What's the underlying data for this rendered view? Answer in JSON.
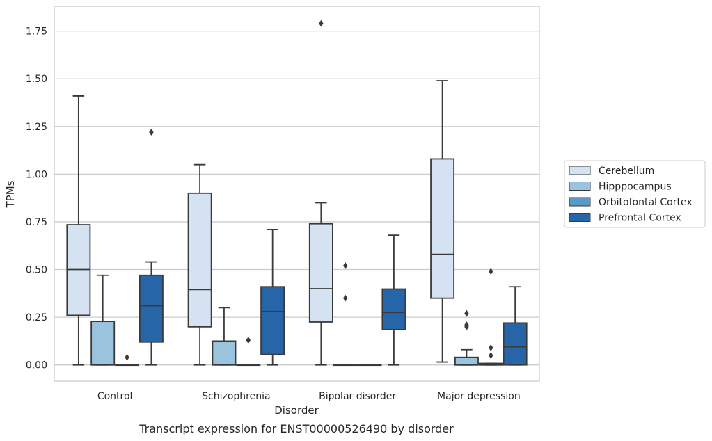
{
  "chart_data": {
    "type": "box",
    "caption": "Transcript expression for ENST00000526490 by disorder",
    "xlabel": "Disorder",
    "ylabel": "TPMs",
    "ylim": [
      -0.085,
      1.88
    ],
    "yticks": [
      0.0,
      0.25,
      0.5,
      0.75,
      1.0,
      1.25,
      1.5,
      1.75
    ],
    "ytick_labels": [
      "0.00",
      "0.25",
      "0.50",
      "0.75",
      "1.00",
      "1.25",
      "1.50",
      "1.75"
    ],
    "grid": "horizontal",
    "legend_position": "right",
    "categories": [
      "Control",
      "Schizophrenia",
      "Bipolar disorder",
      "Major depression"
    ],
    "series": [
      {
        "name": "Cerebellum",
        "color": "#d4e2f1",
        "boxes": [
          {
            "whislo": 0.0,
            "q1": 0.26,
            "med": 0.5,
            "q3": 0.735,
            "whishi": 1.41,
            "fliers": []
          },
          {
            "whislo": 0.0,
            "q1": 0.2,
            "med": 0.395,
            "q3": 0.9,
            "whishi": 1.05,
            "fliers": []
          },
          {
            "whislo": 0.0,
            "q1": 0.225,
            "med": 0.4,
            "q3": 0.74,
            "whishi": 0.85,
            "fliers": [
              1.79
            ]
          },
          {
            "whislo": 0.015,
            "q1": 0.35,
            "med": 0.58,
            "q3": 1.08,
            "whishi": 1.49,
            "fliers": []
          }
        ]
      },
      {
        "name": "Hipppocampus",
        "color": "#9ac3de",
        "boxes": [
          {
            "whislo": 0.0,
            "q1": 0.0,
            "med": 0.0,
            "q3": 0.228,
            "whishi": 0.47,
            "fliers": []
          },
          {
            "whislo": 0.0,
            "q1": 0.0,
            "med": 0.0,
            "q3": 0.125,
            "whishi": 0.3,
            "fliers": []
          },
          {
            "whislo": 0.0,
            "q1": 0.0,
            "med": 0.0,
            "q3": 0.0,
            "whishi": 0.0,
            "fliers": [
              0.52,
              0.35
            ]
          },
          {
            "whislo": 0.0,
            "q1": 0.0,
            "med": 0.0,
            "q3": 0.04,
            "whishi": 0.08,
            "fliers": [
              0.27,
              0.21,
              0.2
            ]
          }
        ]
      },
      {
        "name": "Orbitofontal Cortex",
        "color": "#5a9ac9",
        "boxes": [
          {
            "whislo": 0.0,
            "q1": 0.0,
            "med": 0.0,
            "q3": 0.0,
            "whishi": 0.0,
            "fliers": [
              0.04
            ]
          },
          {
            "whislo": 0.0,
            "q1": 0.0,
            "med": 0.0,
            "q3": 0.0,
            "whishi": 0.0,
            "fliers": [
              0.13
            ]
          },
          {
            "whislo": 0.0,
            "q1": 0.0,
            "med": 0.0,
            "q3": 0.0,
            "whishi": 0.0,
            "fliers": []
          },
          {
            "whislo": 0.0,
            "q1": 0.0,
            "med": 0.0,
            "q3": 0.008,
            "whishi": 0.008,
            "fliers": [
              0.49,
              0.09,
              0.05
            ]
          }
        ]
      },
      {
        "name": "Prefrontal Cortex",
        "color": "#2565a8",
        "boxes": [
          {
            "whislo": 0.0,
            "q1": 0.12,
            "med": 0.31,
            "q3": 0.47,
            "whishi": 0.54,
            "fliers": [
              1.22
            ]
          },
          {
            "whislo": 0.0,
            "q1": 0.055,
            "med": 0.28,
            "q3": 0.41,
            "whishi": 0.71,
            "fliers": []
          },
          {
            "whislo": 0.0,
            "q1": 0.185,
            "med": 0.275,
            "q3": 0.398,
            "whishi": 0.68,
            "fliers": []
          },
          {
            "whislo": 0.0,
            "q1": 0.0,
            "med": 0.095,
            "q3": 0.22,
            "whishi": 0.41,
            "fliers": []
          }
        ]
      }
    ]
  }
}
